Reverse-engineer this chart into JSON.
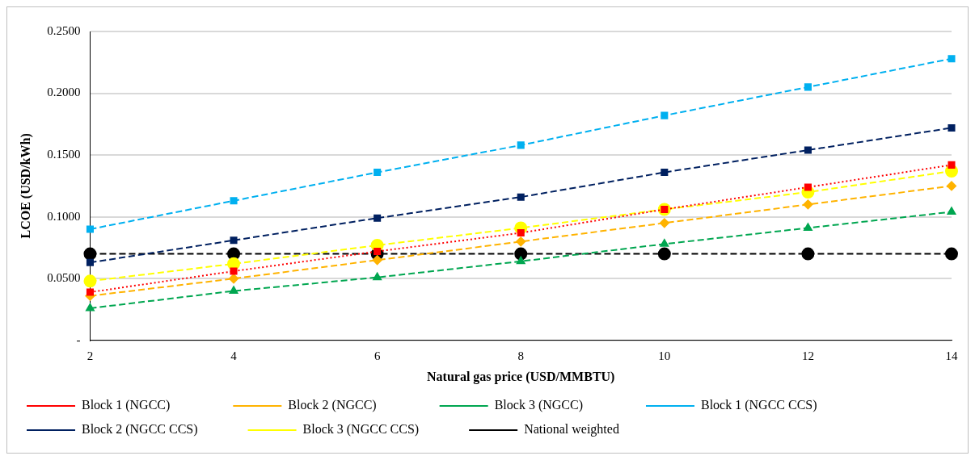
{
  "chart_data": {
    "type": "line",
    "xlabel": "Natural gas price (USD/MMBTU)",
    "ylabel": "LCOE (USD/kWh)",
    "categories": [
      "2",
      "4",
      "6",
      "8",
      "10",
      "12",
      "14"
    ],
    "ylim": [
      0,
      0.25
    ],
    "yticks": [
      {
        "value": 0,
        "label": "-"
      },
      {
        "value": 0.05,
        "label": "0.0500"
      },
      {
        "value": 0.1,
        "label": "0.1000"
      },
      {
        "value": 0.15,
        "label": "0.1500"
      },
      {
        "value": 0.2,
        "label": "0.2000"
      },
      {
        "value": 0.25,
        "label": "0.2500"
      }
    ],
    "grid": "y",
    "legend": "bottom",
    "series": [
      {
        "name": "Block 1 (NGCC)",
        "color": "#ff0000",
        "marker": "square",
        "line_style": "dotted",
        "values": [
          0.039,
          0.056,
          0.072,
          0.087,
          0.106,
          0.124,
          0.142
        ]
      },
      {
        "name": "Block 2 (NGCC)",
        "color": "#ffb300",
        "marker": "diamond",
        "line_style": "dashed",
        "values": [
          0.036,
          0.05,
          0.065,
          0.08,
          0.095,
          0.11,
          0.125
        ]
      },
      {
        "name": "Block 3 (NGCC)",
        "color": "#00a650",
        "marker": "triangle",
        "line_style": "dashed",
        "values": [
          0.026,
          0.04,
          0.051,
          0.064,
          0.078,
          0.091,
          0.104
        ]
      },
      {
        "name": "Block 1 (NGCC CCS)",
        "color": "#00b0f0",
        "marker": "square",
        "line_style": "dashed",
        "values": [
          0.09,
          0.113,
          0.136,
          0.158,
          0.182,
          0.205,
          0.228
        ]
      },
      {
        "name": "Block 2 (NGCC CCS)",
        "color": "#002060",
        "marker": "square",
        "line_style": "dashed",
        "values": [
          0.063,
          0.081,
          0.099,
          0.116,
          0.136,
          0.154,
          0.172
        ]
      },
      {
        "name": "Block 3 (NGCC CCS)",
        "color": "#ffff00",
        "marker": "circle",
        "line_style": "dashed",
        "values": [
          0.048,
          0.062,
          0.077,
          0.091,
          0.106,
          0.12,
          0.137
        ]
      },
      {
        "name": "National weighted",
        "color": "#000000",
        "marker": "circle",
        "line_style": "dashed",
        "values": [
          0.07,
          0.07,
          0.07,
          0.07,
          0.07,
          0.07,
          0.07
        ]
      }
    ]
  }
}
